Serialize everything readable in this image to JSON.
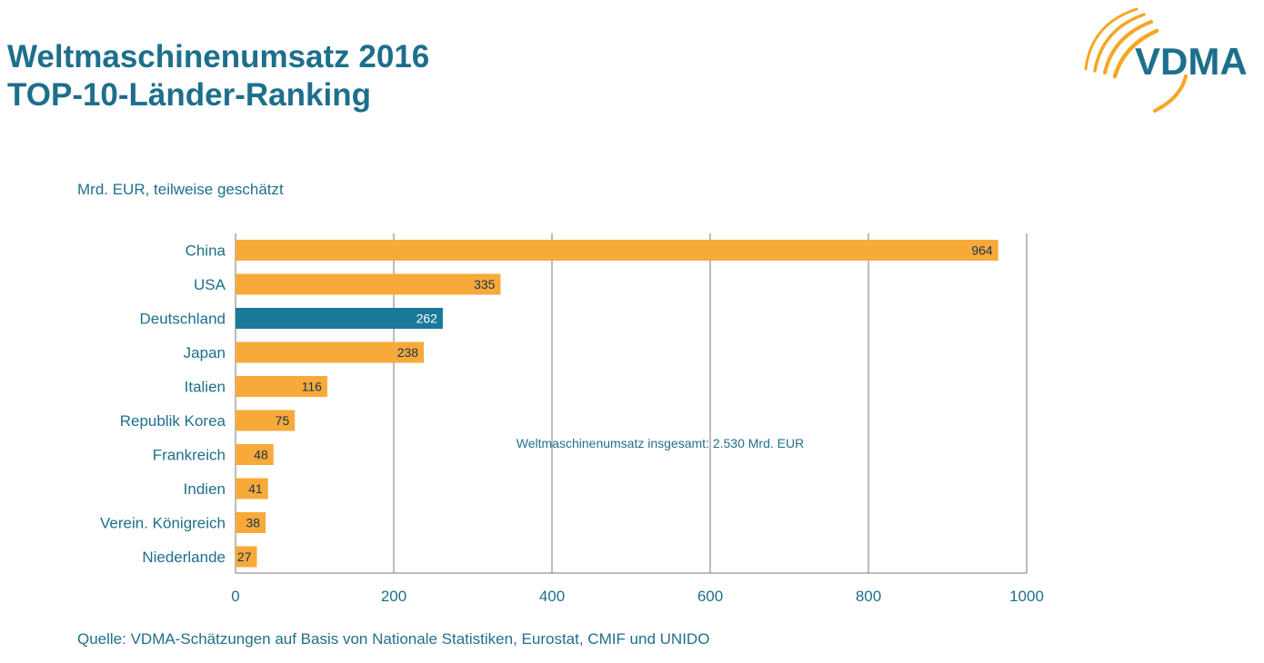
{
  "header": {
    "title_line1": "Weltmaschinenumsatz 2016",
    "title_line2": "TOP-10-Länder-Ranking"
  },
  "logo": {
    "text": "VDMA",
    "icon": "vdma-arc-logo-icon"
  },
  "colors": {
    "primary_text": "#1d6f8c",
    "bar_default": "#f7a93a",
    "bar_highlight": "#1a7898",
    "label_on_bar": "#1a3550",
    "label_on_highlight": "#ffffff",
    "grid": "#7a7a7a",
    "logo_arc": "#f5a623"
  },
  "chart_data": {
    "type": "bar",
    "orientation": "horizontal",
    "categories": [
      "China",
      "USA",
      "Deutschland",
      "Japan",
      "Italien",
      "Republik Korea",
      "Frankreich",
      "Indien",
      "Verein. Königreich",
      "Niederlande"
    ],
    "values": [
      964,
      335,
      262,
      238,
      116,
      75,
      48,
      41,
      38,
      27
    ],
    "highlight_category": "Deutschland",
    "subtitle": "Mrd. EUR, teilweise geschätzt",
    "annotation": "Weltmaschinenumsatz  insgesamt: 2.530 Mrd. EUR",
    "source": "Quelle: VDMA-Schätzungen auf Basis von Nationale Statistiken, Eurostat, CMIF und UNIDO",
    "xlim": [
      0,
      1000
    ],
    "xticks": [
      0,
      200,
      400,
      600,
      800,
      1000
    ],
    "grid": true,
    "data_labels": true
  }
}
